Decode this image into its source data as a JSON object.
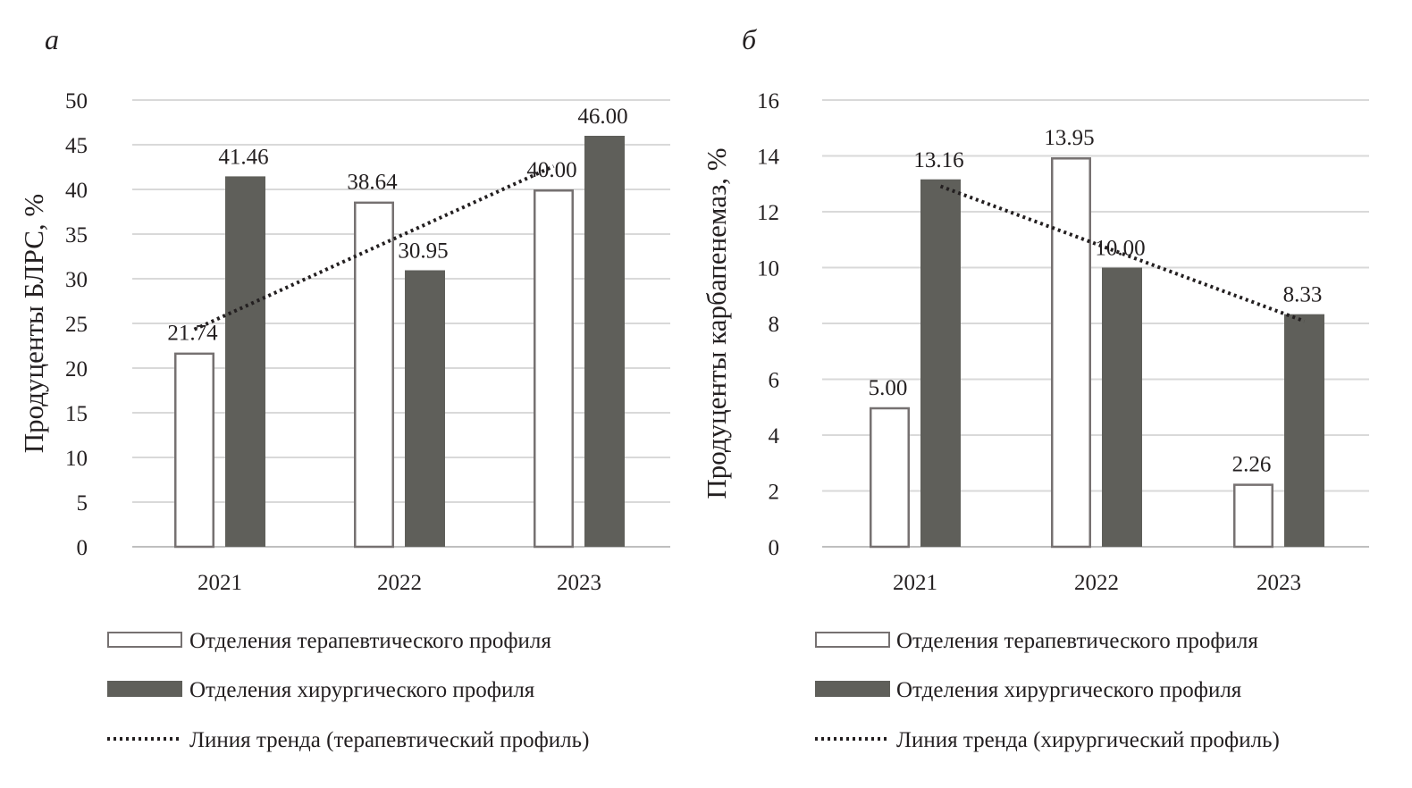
{
  "chart_data": [
    {
      "panel": "а",
      "type": "bar",
      "categories": [
        "2021",
        "2022",
        "2023"
      ],
      "ylabel": "Продуценты БЛРС, %",
      "ylim": [
        0,
        50
      ],
      "ytick_step": 5,
      "yticks": [
        "0",
        "5",
        "10",
        "15",
        "20",
        "25",
        "30",
        "35",
        "40",
        "45",
        "50"
      ],
      "series": [
        {
          "name": "Отделения терапевтического профиля",
          "values": [
            21.74,
            38.64,
            40.0
          ],
          "labels": [
            "21.74",
            "38.64",
            "40.00"
          ],
          "fill": "#ffffff",
          "stroke": "#767171"
        },
        {
          "name": "Отделения хирургического профиля",
          "values": [
            41.46,
            30.95,
            46.0
          ],
          "labels": [
            "41.46",
            "30.95",
            "46.00"
          ],
          "fill": "#5f5f5a",
          "stroke": "#5f5f5a"
        }
      ],
      "trendline": {
        "name": "Линия тренда (терапевтический профиль)",
        "series_index": 0,
        "style": "dotted",
        "color": "#231f20"
      },
      "grid": true,
      "legend": "bottom"
    },
    {
      "panel": "б",
      "type": "bar",
      "categories": [
        "2021",
        "2022",
        "2023"
      ],
      "ylabel": "Продуценты карбапенемаз, %",
      "ylim": [
        0,
        16
      ],
      "ytick_step": 2,
      "yticks": [
        "0",
        "2",
        "4",
        "6",
        "8",
        "10",
        "12",
        "14",
        "16"
      ],
      "series": [
        {
          "name": "Отделения терапевтического профиля",
          "values": [
            5.0,
            13.95,
            2.26
          ],
          "labels": [
            "5.00",
            "13.95",
            "2.26"
          ],
          "fill": "#ffffff",
          "stroke": "#767171"
        },
        {
          "name": "Отделения хирургического профиля",
          "values": [
            13.16,
            10.0,
            8.33
          ],
          "labels": [
            "13.16",
            "10.00",
            "8.33"
          ],
          "fill": "#5f5f5a",
          "stroke": "#5f5f5a"
        }
      ],
      "trendline": {
        "name": "Линия тренда (хирургический профиль)",
        "series_index": 1,
        "style": "dotted",
        "color": "#231f20"
      },
      "grid": true,
      "legend": "bottom"
    }
  ]
}
